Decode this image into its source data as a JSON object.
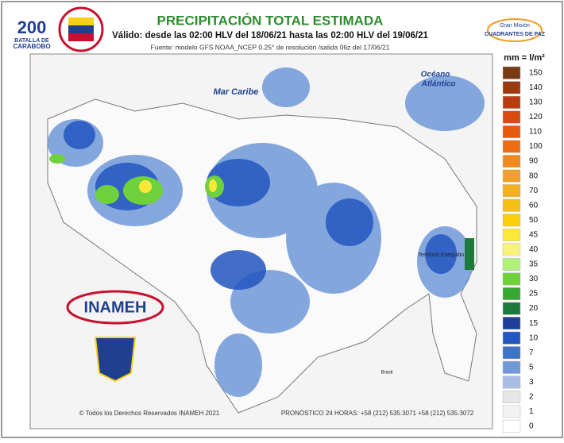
{
  "header": {
    "title": "PRECIPITACIÓN TOTAL ESTIMADA",
    "subtitle": "Válido: desde las 02:00 HLV del 18/06/21 hasta las 02:00 HLV del 19/06/21",
    "source": "Fuente: modelo GFS NOAA_NCEP 0.25° de resolución /salida 06z del 17/06/21"
  },
  "logos": {
    "bicentenary_number": "200",
    "bicentenary_line1": "BATALLA DE",
    "bicentenary_line2": "CARABOBO",
    "agency": "INAMEH",
    "mission_line1": "Gran Misión",
    "mission_line2": "CUADRANTES DE PAZ"
  },
  "map": {
    "labels": [
      "Mar Caribe",
      "Océano",
      "Atlántico",
      "Territorio Esequibo",
      "Brasil"
    ]
  },
  "legend": {
    "unit": "mm = l/m²",
    "items": [
      {
        "value": 150,
        "color": "#7a3b12"
      },
      {
        "value": 140,
        "color": "#9c3a0d"
      },
      {
        "value": 130,
        "color": "#b83c0e"
      },
      {
        "value": 120,
        "color": "#d84a10"
      },
      {
        "value": 110,
        "color": "#e65a0f"
      },
      {
        "value": 100,
        "color": "#ed6d12"
      },
      {
        "value": 90,
        "color": "#ef8a1a"
      },
      {
        "value": 80,
        "color": "#f0a02a"
      },
      {
        "value": 70,
        "color": "#f2b021"
      },
      {
        "value": 60,
        "color": "#f7bf12"
      },
      {
        "value": 50,
        "color": "#fbcf0a"
      },
      {
        "value": 45,
        "color": "#fde83a"
      },
      {
        "value": 40,
        "color": "#f8f27a"
      },
      {
        "value": 35,
        "color": "#b2f07a"
      },
      {
        "value": 30,
        "color": "#6fd23c"
      },
      {
        "value": 25,
        "color": "#36a830"
      },
      {
        "value": 20,
        "color": "#1e7a3c"
      },
      {
        "value": 15,
        "color": "#1c3f9a"
      },
      {
        "value": 10,
        "color": "#2356c0"
      },
      {
        "value": 7,
        "color": "#3f73c8"
      },
      {
        "value": 5,
        "color": "#6f98d8"
      },
      {
        "value": 3,
        "color": "#a7bde6"
      },
      {
        "value": 2,
        "color": "#e6e6e6"
      },
      {
        "value": 1,
        "color": "#f2f2f2"
      },
      {
        "value": 0,
        "color": "#ffffff"
      }
    ]
  },
  "footer": {
    "copyright": "© Todos los Derechos Reservados INAMEH 2021",
    "phones": "PRONÓSTICO 24 HORAS: +58 (212) 535.3071 +58 (212) 535.3072"
  }
}
